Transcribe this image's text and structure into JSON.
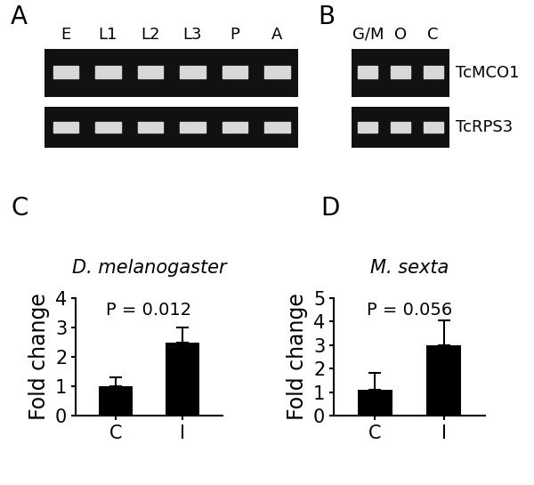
{
  "gels": {
    "rows": [
      "TcMCO1",
      "TcRPS3"
    ],
    "panels": [
      {
        "panel": "A",
        "lanes": [
          "E",
          "L1",
          "L2",
          "L3",
          "P",
          "A"
        ]
      },
      {
        "panel": "B",
        "lanes": [
          "G/M",
          "O",
          "C"
        ]
      }
    ]
  },
  "chart_data": [
    {
      "type": "bar",
      "panel": "C",
      "title": "D. melanogaster",
      "y_label": "Fold change",
      "categories": [
        "C",
        "I"
      ],
      "values": [
        1.0,
        2.5
      ],
      "errors": [
        0.3,
        0.5
      ],
      "color": "#000000",
      "ylim": [
        0,
        4
      ],
      "yticks": [
        0,
        1,
        2,
        3,
        4
      ],
      "annotations": [
        "P = 0.012"
      ]
    },
    {
      "type": "bar",
      "panel": "D",
      "title": "M. sexta",
      "y_label": "Fold change",
      "categories": [
        "C",
        "I"
      ],
      "values": [
        1.1,
        3.0
      ],
      "errors": [
        0.7,
        1.05
      ],
      "color": "#000000",
      "ylim": [
        0,
        5
      ],
      "yticks": [
        0,
        1,
        2,
        3,
        4,
        5
      ],
      "annotations": [
        "P = 0.056"
      ]
    }
  ]
}
